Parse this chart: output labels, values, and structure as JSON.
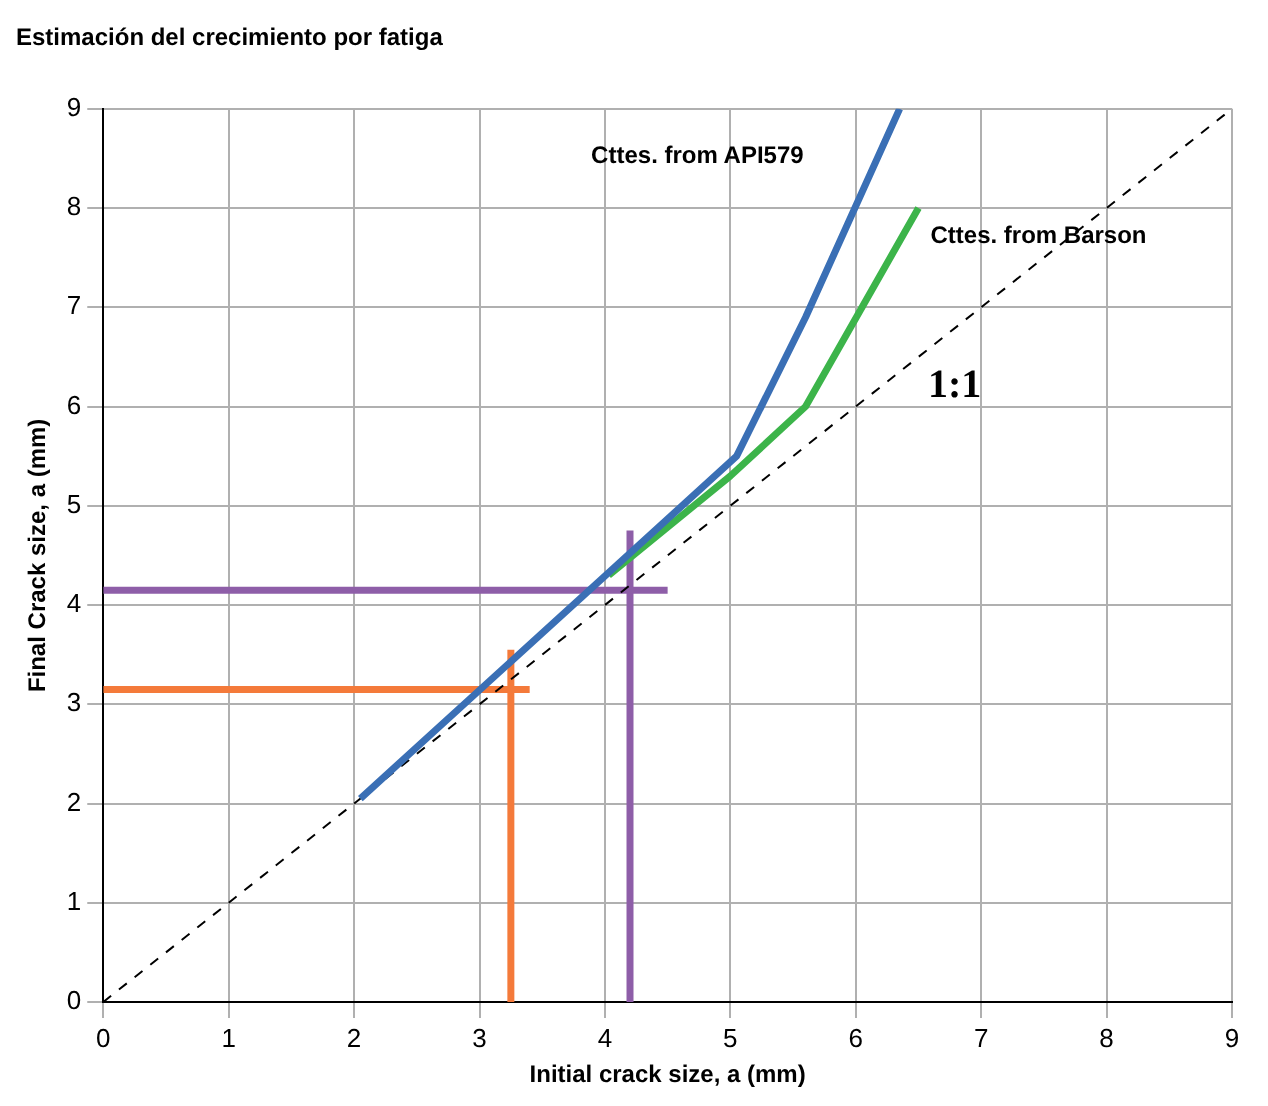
{
  "chart_data": {
    "type": "line",
    "title": "Estimación del crecimiento por fatiga",
    "xlabel": "Initial crack size, a (mm)",
    "ylabel": "Final Crack size, a (mm)",
    "xlim": [
      0,
      9
    ],
    "ylim": [
      0,
      9
    ],
    "xticks": [
      0,
      1,
      2,
      3,
      4,
      5,
      6,
      7,
      8,
      9
    ],
    "yticks": [
      0,
      1,
      2,
      3,
      4,
      5,
      6,
      7,
      8,
      9
    ],
    "grid": true,
    "legend": false,
    "marker": "none",
    "series": [
      {
        "name": "Cttes. from API579",
        "color": "#3a6fb5",
        "x": [
          2.05,
          5.05,
          5.6,
          6.35
        ],
        "values": [
          2.05,
          5.5,
          6.9,
          9
        ]
      },
      {
        "name": "Cttes. from Barson",
        "color": "#3cb44a",
        "x": [
          4.03,
          5.0,
          5.6,
          6.5
        ],
        "values": [
          4.3,
          5.3,
          6.0,
          8.0
        ]
      },
      {
        "name": "1:1",
        "color": "#000000",
        "line_style": "dashed",
        "x": [
          0,
          9
        ],
        "values": [
          0,
          9
        ]
      },
      {
        "color": "#f47a3a",
        "x": [
          0,
          3.4
        ],
        "values": [
          3.15,
          3.15
        ]
      },
      {
        "color": "#f47a3a",
        "x": [
          3.25,
          3.25
        ],
        "values": [
          0,
          3.55
        ]
      },
      {
        "color": "#8e5ea8",
        "x": [
          0,
          4.5
        ],
        "values": [
          4.15,
          4.15
        ]
      },
      {
        "color": "#8e5ea8",
        "x": [
          4.2,
          4.2
        ],
        "values": [
          0,
          4.75
        ]
      }
    ]
  }
}
